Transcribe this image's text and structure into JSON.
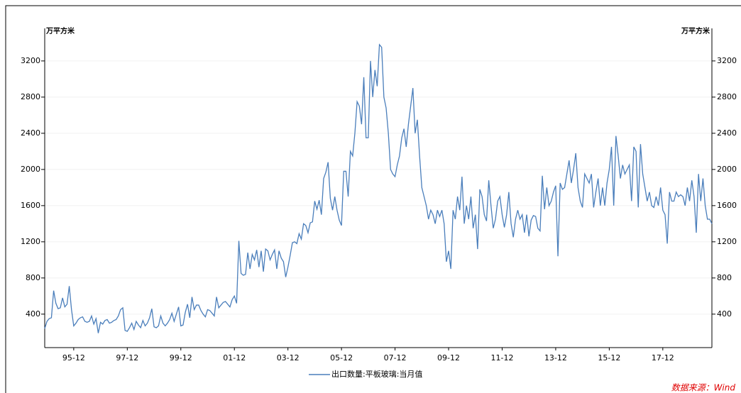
{
  "chart_data": {
    "type": "line",
    "y_label": "万平方米",
    "y2_label": "万平方米",
    "source": "数据来源：Wind",
    "categories": [
      null,
      null,
      null,
      null,
      null,
      null,
      null,
      null,
      null,
      null,
      null,
      null,
      null,
      "95-12",
      null,
      null,
      null,
      null,
      null,
      null,
      null,
      null,
      null,
      null,
      null,
      null,
      null,
      null,
      null,
      null,
      null,
      null,
      null,
      null,
      null,
      null,
      null,
      "97-12",
      null,
      null,
      null,
      null,
      null,
      null,
      null,
      null,
      null,
      null,
      null,
      null,
      null,
      null,
      null,
      null,
      null,
      null,
      null,
      null,
      null,
      null,
      null,
      "99-12",
      null,
      null,
      null,
      null,
      null,
      null,
      null,
      null,
      null,
      null,
      null,
      null,
      null,
      null,
      null,
      null,
      null,
      null,
      null,
      null,
      null,
      null,
      null,
      "01-12",
      null,
      null,
      null,
      null,
      null,
      null,
      null,
      null,
      null,
      null,
      null,
      null,
      null,
      null,
      null,
      null,
      null,
      null,
      null,
      null,
      null,
      null,
      null,
      "03-12",
      null,
      null,
      null,
      null,
      null,
      null,
      null,
      null,
      null,
      null,
      null,
      null,
      null,
      null,
      null,
      null,
      null,
      null,
      null,
      null,
      null,
      null,
      null,
      "05-12",
      null,
      null,
      null,
      null,
      null,
      null,
      null,
      null,
      null,
      null,
      null,
      null,
      null,
      null,
      null,
      null,
      null,
      null,
      null,
      null,
      null,
      null,
      null,
      "07-12",
      null,
      null,
      null,
      null,
      null,
      null,
      null,
      null,
      null,
      null,
      null,
      null,
      null,
      null,
      null,
      null,
      null,
      null,
      null,
      null,
      null,
      null,
      null,
      "09-12",
      null,
      null,
      null,
      null,
      null,
      null,
      null,
      null,
      null,
      null,
      null,
      null,
      null,
      null,
      null,
      null,
      null,
      null,
      null,
      null,
      null,
      null,
      null,
      "11-12",
      null,
      null,
      null,
      null,
      null,
      null,
      null,
      null,
      null,
      null,
      null,
      null,
      null,
      null,
      null,
      null,
      null,
      null,
      null,
      null,
      null,
      null,
      null,
      "13-12",
      null,
      null,
      null,
      null,
      null,
      null,
      null,
      null,
      null,
      null,
      null,
      null,
      null,
      null,
      null,
      null,
      null,
      null,
      null,
      null,
      null,
      null,
      null,
      "15-12",
      null,
      null,
      null,
      null,
      null,
      null,
      null,
      null,
      null,
      null,
      null,
      null,
      null,
      null,
      null,
      null,
      null,
      null,
      null,
      null,
      null,
      null,
      null,
      "17-12",
      null,
      null,
      null,
      null,
      null,
      null,
      null,
      null,
      null,
      null,
      null,
      null,
      null,
      null,
      null,
      null,
      null,
      null,
      null,
      null,
      null,
      null
    ],
    "series": [
      {
        "name": "出口数量:平板玻璃:当月值",
        "color": "#4a7ebb",
        "values": [
          240,
          320,
          350,
          360,
          660,
          520,
          460,
          470,
          580,
          480,
          510,
          710,
          450,
          270,
          300,
          340,
          360,
          370,
          320,
          310,
          320,
          380,
          290,
          350,
          190,
          310,
          290,
          330,
          340,
          300,
          310,
          330,
          340,
          380,
          450,
          470,
          220,
          210,
          250,
          300,
          230,
          320,
          280,
          250,
          330,
          270,
          300,
          360,
          460,
          260,
          250,
          270,
          380,
          300,
          270,
          300,
          340,
          410,
          320,
          400,
          480,
          270,
          280,
          420,
          510,
          360,
          590,
          450,
          500,
          500,
          440,
          400,
          370,
          450,
          440,
          410,
          380,
          590,
          470,
          500,
          530,
          540,
          510,
          480,
          560,
          600,
          520,
          1210,
          850,
          830,
          840,
          1080,
          900,
          1060,
          1000,
          1110,
          920,
          1100,
          870,
          1120,
          1100,
          1000,
          1060,
          1110,
          900,
          1100,
          1020,
          980,
          810,
          920,
          1050,
          1190,
          1200,
          1180,
          1290,
          1230,
          1400,
          1380,
          1300,
          1410,
          1420,
          1650,
          1560,
          1660,
          1500,
          1900,
          1970,
          2080,
          1680,
          1550,
          1700,
          1550,
          1440,
          1380,
          1980,
          1980,
          1700,
          2200,
          2150,
          2400,
          2750,
          2700,
          2500,
          3020,
          2350,
          2350,
          3200,
          2800,
          3100,
          2920,
          3380,
          3350,
          2800,
          2680,
          2400,
          2000,
          1950,
          1920,
          2050,
          2150,
          2350,
          2450,
          2250,
          2500,
          2700,
          2900,
          2400,
          2550,
          2150,
          1800,
          1700,
          1600,
          1450,
          1550,
          1500,
          1400,
          1550,
          1480,
          1550,
          1400,
          980,
          1100,
          900,
          1550,
          1450,
          1700,
          1550,
          1920,
          1400,
          1600,
          1450,
          1700,
          1350,
          1500,
          1120,
          1780,
          1700,
          1500,
          1430,
          1880,
          1600,
          1350,
          1450,
          1650,
          1700,
          1500,
          1360,
          1500,
          1750,
          1400,
          1250,
          1450,
          1550,
          1450,
          1500,
          1300,
          1500,
          1260,
          1440,
          1490,
          1480,
          1350,
          1320,
          1930,
          1560,
          1800,
          1600,
          1650,
          1750,
          1820,
          1040,
          1850,
          1780,
          1800,
          1950,
          2100,
          1850,
          2000,
          2180,
          1800,
          1650,
          1580,
          1950,
          1900,
          1850,
          1950,
          1580,
          1750,
          1900,
          1600,
          1800,
          1600,
          1850,
          2000,
          2250,
          1600,
          2370,
          2150,
          1900,
          2050,
          1950,
          2000,
          2050,
          1650,
          2250,
          2200,
          1580,
          2280,
          1950,
          1800,
          1650,
          1750,
          1600,
          1580,
          1700,
          1600,
          1800,
          1550,
          1500,
          1180,
          1750,
          1650,
          1650,
          1750,
          1700,
          1720,
          1700,
          1600,
          1800,
          1650,
          1880,
          1700,
          1300,
          1950,
          1650,
          1900,
          1600,
          1450,
          1450,
          1400
        ]
      }
    ],
    "ylim": [
      30,
      3560
    ],
    "yticks": [
      400,
      800,
      1200,
      1600,
      2000,
      2400,
      2800,
      3200
    ],
    "y2lim": [
      30,
      3560
    ],
    "y2ticks": [
      400,
      800,
      1200,
      1600,
      2000,
      2400,
      2800,
      3200
    ],
    "grid": true,
    "legend": "bottom"
  }
}
